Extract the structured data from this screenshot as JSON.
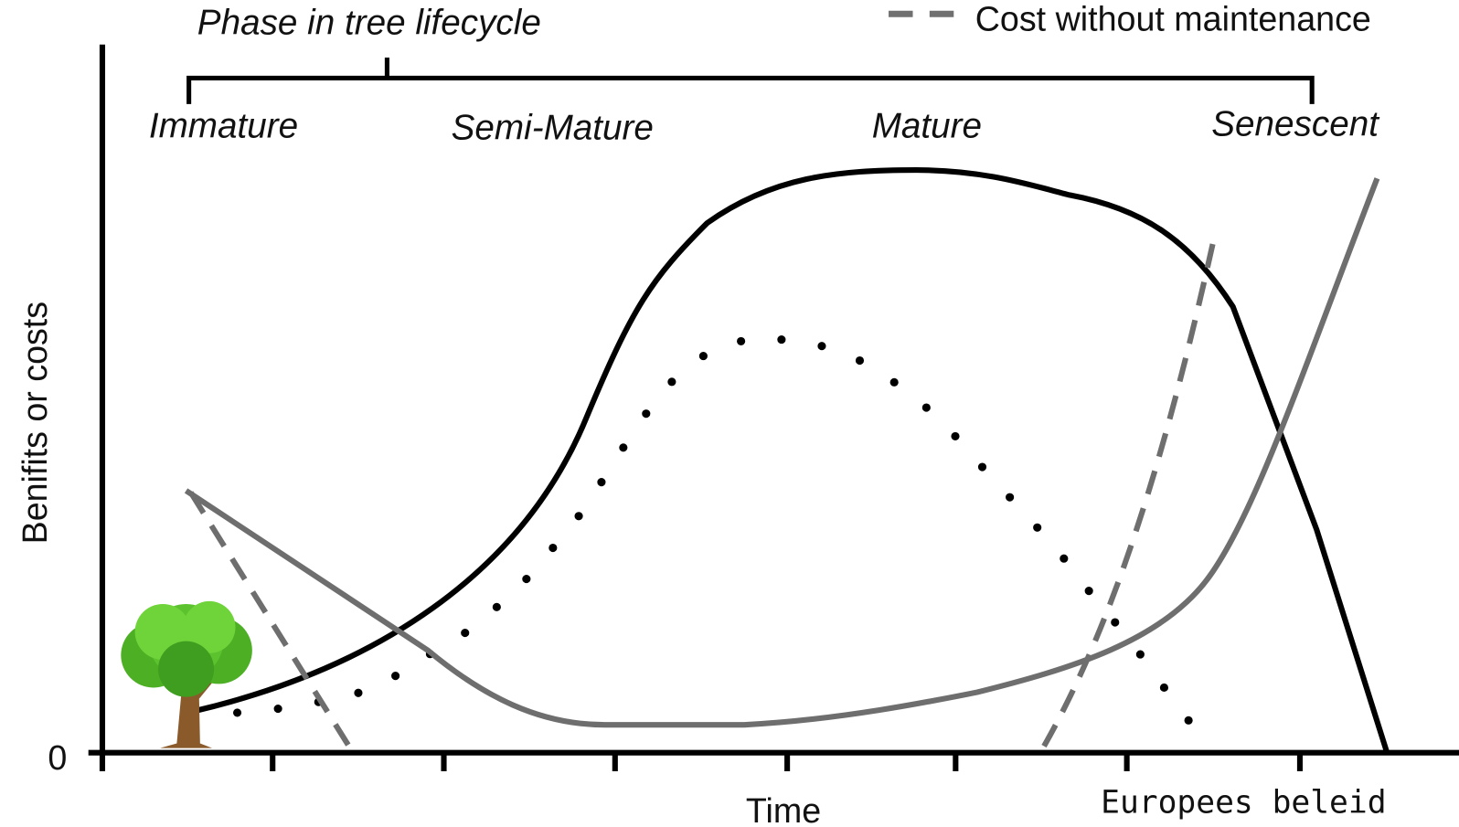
{
  "header": {
    "title": "Phase in tree lifecycle",
    "legend": "Cost without maintenance"
  },
  "phases": [
    "Immature",
    "Semi-Mature",
    "Mature",
    "Senescent"
  ],
  "axes": {
    "y_label": "Benifits or costs",
    "origin": "0",
    "x_label": "Time"
  },
  "footer": {
    "note": "Europees beleid"
  }
}
